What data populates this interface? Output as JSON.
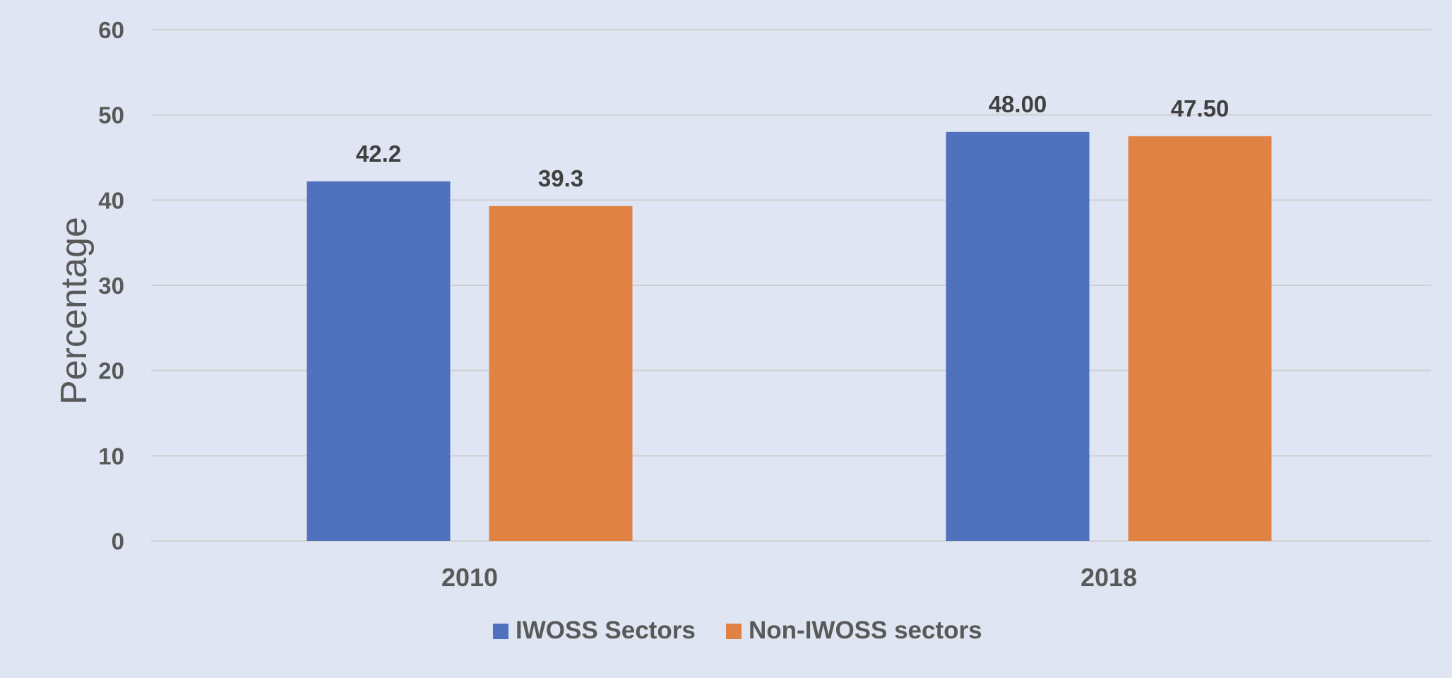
{
  "chart_data": {
    "type": "bar",
    "categories": [
      "2010",
      "2018"
    ],
    "series": [
      {
        "name": "IWOSS Sectors",
        "values": [
          42.2,
          48.0
        ],
        "labels": [
          "42.2",
          "48.00"
        ],
        "color": "#4f71be"
      },
      {
        "name": "Non-IWOSS sectors",
        "values": [
          39.3,
          47.5
        ],
        "labels": [
          "39.3",
          "47.50"
        ],
        "color": "#e08244"
      }
    ],
    "title": "",
    "xlabel": "",
    "ylabel": "Percentage",
    "ylim": [
      0,
      60
    ],
    "yticks": [
      0,
      10,
      20,
      30,
      40,
      50,
      60
    ],
    "grid": true,
    "legend_position": "bottom",
    "background_color": "#dfe5f2"
  }
}
